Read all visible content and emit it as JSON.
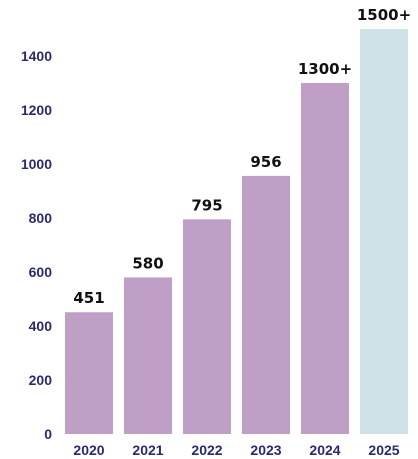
{
  "chart_data": {
    "type": "bar",
    "categories": [
      "2020",
      "2021",
      "2022",
      "2023",
      "2024",
      "2025"
    ],
    "values": [
      451,
      580,
      795,
      956,
      1300,
      1500
    ],
    "data_labels": [
      "451",
      "580",
      "795",
      "956",
      "1300+",
      "1500+"
    ],
    "bar_colors": [
      "#c09fc7",
      "#c09fc7",
      "#c09fc7",
      "#c09fc7",
      "#c09fc7",
      "#cfe3e6"
    ],
    "axis_text_color": "#2b2a6b",
    "y_ticks": [
      "0",
      "200",
      "400",
      "600",
      "800",
      "1000",
      "1200",
      "1400"
    ],
    "ylim": [
      0,
      1500
    ],
    "grid": false,
    "legend": "none"
  }
}
